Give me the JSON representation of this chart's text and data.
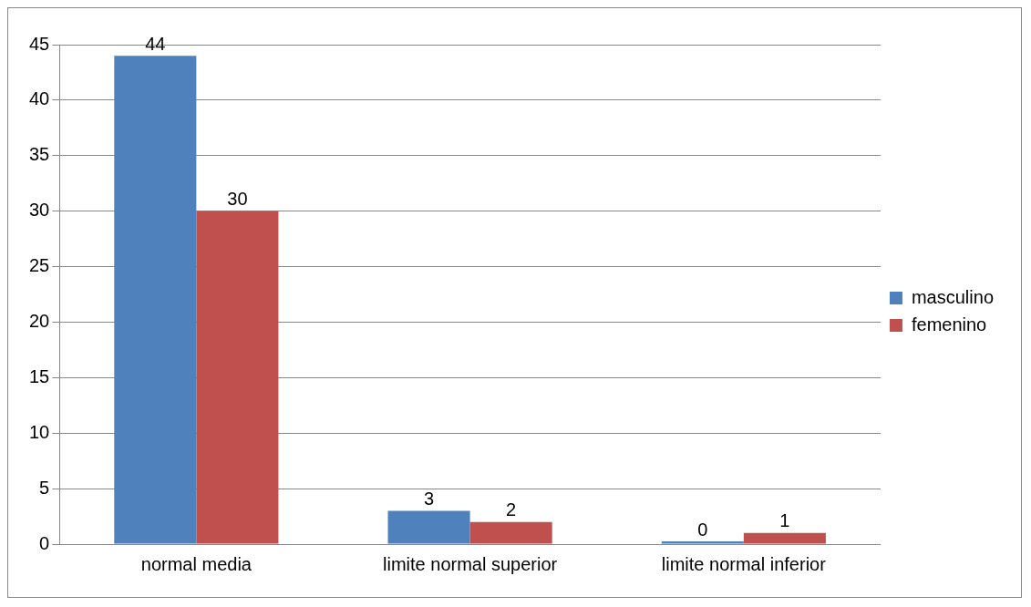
{
  "chart_data": {
    "type": "bar",
    "categories": [
      "normal media",
      "limite normal superior",
      "limite normal inferior"
    ],
    "series": [
      {
        "name": "masculino",
        "color": "#4f81bd",
        "values": [
          44,
          3,
          0
        ]
      },
      {
        "name": "femenino",
        "color": "#c0504d",
        "values": [
          30,
          2,
          1
        ]
      }
    ],
    "ylim": [
      0,
      45
    ],
    "yticks": [
      0,
      5,
      10,
      15,
      20,
      25,
      30,
      35,
      40,
      45
    ],
    "grid": "y",
    "legend": "right",
    "data_labels": true
  }
}
